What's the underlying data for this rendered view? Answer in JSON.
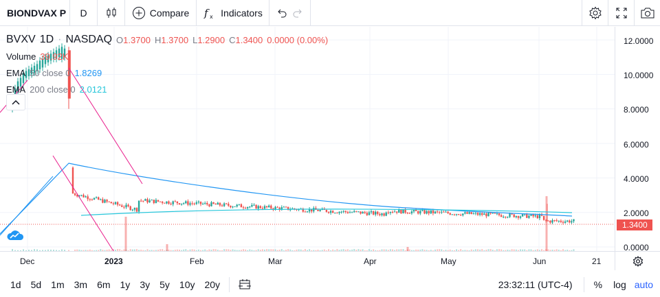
{
  "toolbar": {
    "symbol": "BIONDVAX P",
    "interval": "D",
    "compare_label": "Compare",
    "indicators_label": "Indicators"
  },
  "legend": {
    "symbol": "BVXV",
    "interval": "1D",
    "exchange": "NASDAQ",
    "open_label": "O",
    "open": "1.3700",
    "high_label": "H",
    "high": "1.3700",
    "low_label": "L",
    "low": "1.2900",
    "close_label": "C",
    "close": "1.3400",
    "change": "0.0000 (0.00%)",
    "volume_label": "Volume",
    "volume": "39.92K",
    "ema50_label": "EMA",
    "ema50_params": "50 close 0",
    "ema50_value": "1.8269",
    "ema200_label": "EMA",
    "ema200_params": "200 close 0",
    "ema200_value": "2.0121"
  },
  "price_axis": {
    "ticks": [
      "12.0000",
      "10.0000",
      "8.0000",
      "6.0000",
      "4.0000",
      "2.0000",
      "0.0000"
    ],
    "last_price": "1.3400"
  },
  "time_axis": {
    "labels": [
      "Dec",
      "2023",
      "Feb",
      "Mar",
      "Apr",
      "May",
      "Jun",
      "21"
    ]
  },
  "bottom_bar": {
    "ranges": [
      "1d",
      "5d",
      "1m",
      "3m",
      "6m",
      "1y",
      "3y",
      "5y",
      "10y",
      "20y"
    ],
    "clock": "23:32:11 (UTC-4)",
    "percent": "%",
    "log": "log",
    "auto": "auto"
  },
  "colors": {
    "up": "#26a69a",
    "down": "#ef5350",
    "ema50": "#2196f3",
    "ema200": "#26c6da",
    "accent": "#2962ff"
  },
  "chart_data": {
    "type": "candlestick",
    "symbol": "BVXV",
    "ylim": [
      0,
      12.4
    ],
    "last_price": 1.34,
    "x": [
      "Dec",
      "2023",
      "Feb",
      "Mar",
      "Apr",
      "May",
      "Jun",
      "21"
    ]
  }
}
